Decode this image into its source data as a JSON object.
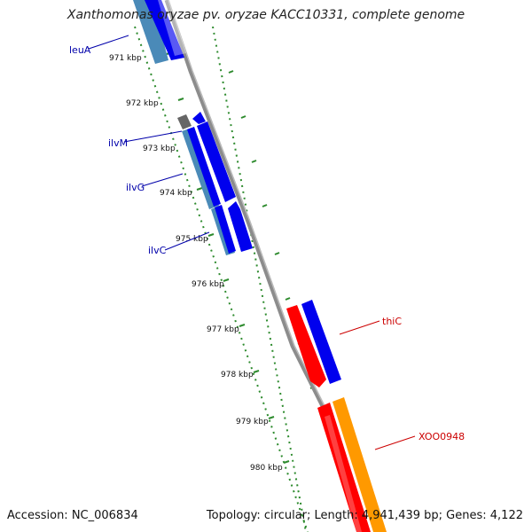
{
  "title": "Xanthomonas oryzae pv. oryzae KACC10331, complete genome",
  "footer": {
    "accession": "Accession: NC_006834",
    "summary": "Topology: circular; Length: 4,941,439 bp; Genes: 4,122"
  },
  "ticks": [
    "971 kbp",
    "972 kbp",
    "973 kbp",
    "974 kbp",
    "975 kbp",
    "976 kbp",
    "977 kbp",
    "978 kbp",
    "979 kbp",
    "980 kbp"
  ],
  "gene_labels": {
    "leuA": "leuA",
    "ilvM": "ilvM",
    "ilvG": "ilvG",
    "ilvC": "ilvC",
    "thiC": "thiC",
    "XOO0948": "XOO0948"
  },
  "colors": {
    "backbone": "#8c8c8c",
    "tick_green": "#2e8b2e",
    "gene_blue": "#0000ee",
    "gene_steelblue": "#4a8ab8",
    "gene_red": "#ff0000",
    "gene_orange": "#ff9900",
    "gene_gray": "#666666",
    "label_blue": "#0000aa",
    "label_red": "#cc0000"
  }
}
